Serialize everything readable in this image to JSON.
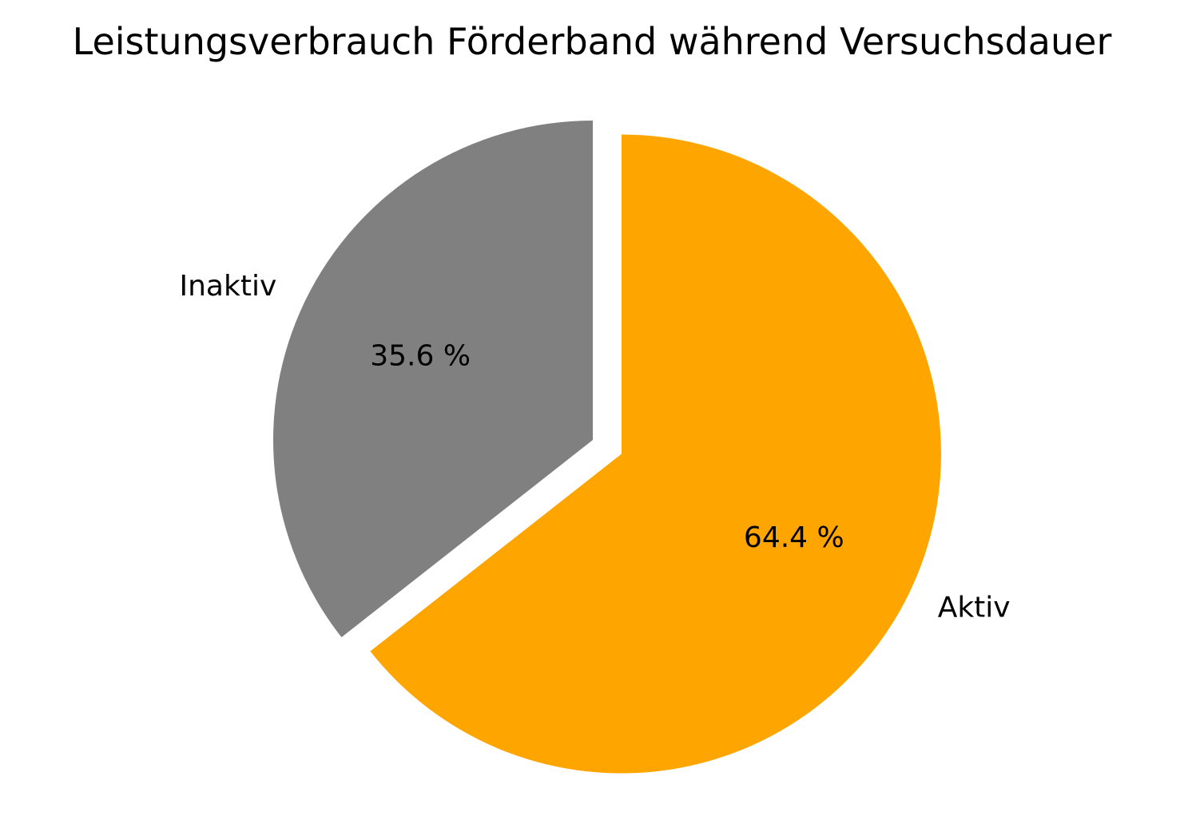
{
  "chart_data": {
    "type": "pie",
    "title": "Leistungsverbrauch Förderband während Versuchsdauer",
    "labels": [
      "Aktiv",
      "Inaktiv"
    ],
    "values": [
      64.4,
      35.6
    ],
    "percent_labels": [
      "64.4 %",
      "35.6 %"
    ],
    "colors": [
      "#ffa500",
      "#808080"
    ],
    "exploded": [
      true,
      false
    ],
    "start_angle_deg": 90,
    "direction": "clockwise"
  }
}
